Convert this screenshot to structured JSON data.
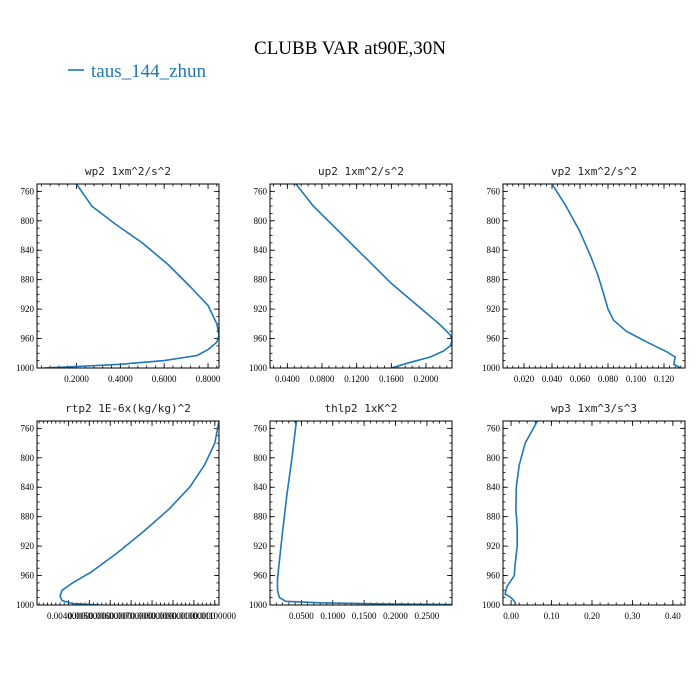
{
  "figure": {
    "title": "CLUBB VAR at90E,30N",
    "legend": [
      {
        "label": "taus_144_zhun",
        "color": "#1f77b4"
      }
    ]
  },
  "chart_data": [
    {
      "type": "line",
      "title": "wp2  1xm^2/s^2",
      "xlim": [
        0.02,
        0.85
      ],
      "ylim": [
        1000,
        750
      ],
      "y_ticks": [
        760,
        800,
        840,
        880,
        920,
        960,
        1000
      ],
      "x_ticks": [
        0.2,
        0.4,
        0.6,
        0.8
      ],
      "x_tick_labels": [
        "0.2000",
        "0.4000",
        "0.6000",
        "0.8000"
      ],
      "series": [
        {
          "x": [
            0.2,
            0.27,
            0.38,
            0.5,
            0.62,
            0.72,
            0.8,
            0.84,
            0.85,
            0.84,
            0.8,
            0.75,
            0.6,
            0.4,
            0.2,
            0.05
          ],
          "y": [
            750,
            780,
            805,
            830,
            860,
            890,
            915,
            940,
            955,
            965,
            975,
            983,
            990,
            995,
            998,
            1000
          ]
        }
      ]
    },
    {
      "type": "line",
      "title": "up2  1xm^2/s^2",
      "xlim": [
        0.02,
        0.23
      ],
      "ylim": [
        1000,
        750
      ],
      "y_ticks": [
        760,
        800,
        840,
        880,
        920,
        960,
        1000
      ],
      "x_ticks": [
        0.04,
        0.08,
        0.12,
        0.16,
        0.2
      ],
      "x_tick_labels": [
        "0.0400",
        "0.0800",
        "0.1200",
        "0.1600",
        "0.2000"
      ],
      "series": [
        {
          "x": [
            0.05,
            0.07,
            0.1,
            0.13,
            0.16,
            0.19,
            0.215,
            0.228,
            0.23,
            0.228,
            0.22,
            0.205,
            0.18,
            0.16
          ],
          "y": [
            750,
            780,
            815,
            850,
            885,
            915,
            940,
            955,
            963,
            970,
            977,
            985,
            993,
            1000
          ]
        }
      ]
    },
    {
      "type": "line",
      "title": "vp2  1xm^2/s^2",
      "xlim": [
        0.005,
        0.135
      ],
      "ylim": [
        1000,
        750
      ],
      "y_ticks": [
        760,
        800,
        840,
        880,
        920,
        960,
        1000
      ],
      "x_ticks": [
        0.02,
        0.04,
        0.06,
        0.08,
        0.1,
        0.12
      ],
      "x_tick_labels": [
        "0.020",
        "0.040",
        "0.060",
        "0.080",
        "0.100",
        "0.120"
      ],
      "series": [
        {
          "x": [
            0.04,
            0.05,
            0.06,
            0.068,
            0.073,
            0.077,
            0.08,
            0.084,
            0.093,
            0.108,
            0.122,
            0.128,
            0.127,
            0.132
          ],
          "y": [
            750,
            780,
            815,
            850,
            875,
            900,
            920,
            935,
            950,
            965,
            978,
            985,
            995,
            1000
          ]
        }
      ]
    },
    {
      "type": "line",
      "title": "rtp2  1E-6x(kg/kg)^2",
      "xlim": [
        0.0025,
        0.0112
      ],
      "ylim": [
        1000,
        750
      ],
      "y_ticks": [
        760,
        800,
        840,
        880,
        920,
        960,
        1000
      ],
      "x_ticks": [
        0.004,
        0.005,
        0.006,
        0.007,
        0.008,
        0.009,
        0.01,
        0.011
      ],
      "x_tick_labels": [
        "0.00400000",
        "0.00500000",
        "0.00600000",
        "0.00700000",
        "0.00800000",
        "0.00900000",
        "0.01000000",
        "0.01100000"
      ],
      "series": [
        {
          "x": [
            0.0112,
            0.011,
            0.0105,
            0.0098,
            0.0088,
            0.0076,
            0.0063,
            0.0051,
            0.0042,
            0.0037,
            0.0036,
            0.0037,
            0.0042,
            0.0055
          ],
          "y": [
            750,
            780,
            810,
            840,
            870,
            900,
            930,
            955,
            970,
            980,
            988,
            994,
            998,
            1000
          ]
        }
      ]
    },
    {
      "type": "line",
      "title": "thlp2  1xK^2",
      "xlim": [
        0.0,
        0.29
      ],
      "ylim": [
        1000,
        750
      ],
      "y_ticks": [
        760,
        800,
        840,
        880,
        920,
        960,
        1000
      ],
      "x_ticks": [
        0.05,
        0.1,
        0.15,
        0.2,
        0.25
      ],
      "x_tick_labels": [
        "0.0500",
        "0.1000",
        "0.1500",
        "0.2000",
        "0.2500"
      ],
      "series": [
        {
          "x": [
            0.042,
            0.035,
            0.027,
            0.02,
            0.015,
            0.012,
            0.012,
            0.015,
            0.025,
            0.08,
            0.18,
            0.29
          ],
          "y": [
            750,
            800,
            850,
            900,
            940,
            965,
            980,
            990,
            995,
            997,
            998.5,
            999.5
          ]
        }
      ]
    },
    {
      "type": "line",
      "title": "wp3  1xm^3/s^3",
      "xlim": [
        -0.02,
        0.43
      ],
      "ylim": [
        1000,
        750
      ],
      "y_ticks": [
        760,
        800,
        840,
        880,
        920,
        960,
        1000
      ],
      "x_ticks": [
        0.0,
        0.1,
        0.2,
        0.3,
        0.4
      ],
      "x_tick_labels": [
        "0.00",
        "0.10",
        "0.20",
        "0.30",
        "0.40"
      ],
      "series": [
        {
          "x": [
            0.065,
            0.035,
            0.02,
            0.013,
            0.012,
            0.015,
            0.015,
            0.01,
            0.008,
            -0.01,
            -0.015,
            0.0,
            0.01,
            0.01
          ],
          "y": [
            750,
            780,
            810,
            840,
            870,
            895,
            920,
            945,
            960,
            975,
            985,
            990,
            996,
            1000
          ]
        }
      ]
    }
  ]
}
